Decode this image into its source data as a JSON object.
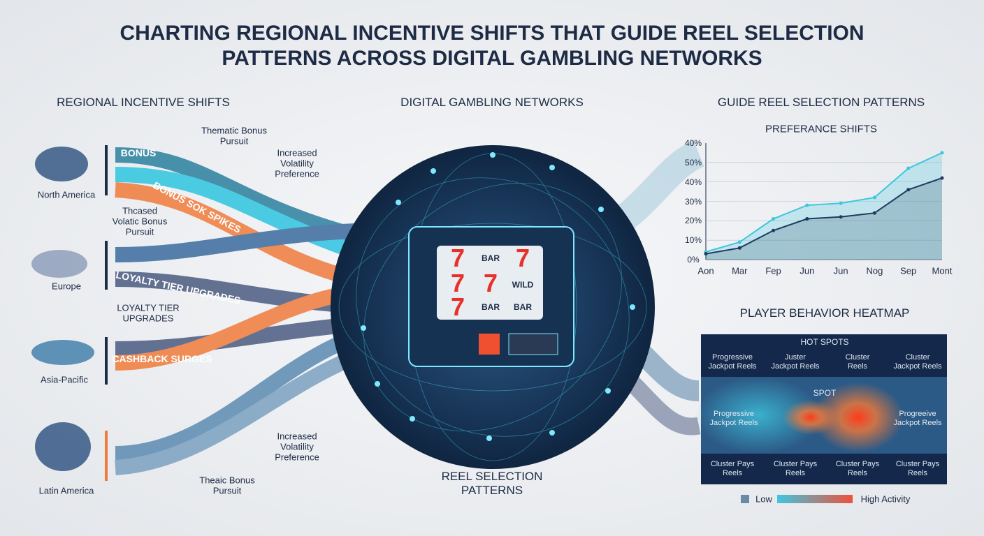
{
  "title": [
    "CHARTING REGIONAL INCENTIVE SHIFTS THAT GUIDE REEL SELECTION",
    "PATTERNS ACROSS DIGITAL GAMBLING NETWORKS"
  ],
  "left": {
    "heading": "REGIONAL INCENTIVE SHIFTS",
    "regions": [
      "North America",
      "Europe",
      "Asia-Pacific",
      "Latin America"
    ],
    "flows": [
      "BONUS",
      "BONUS SOK SPIKES",
      "LOYALTY TIER UPGRADES",
      "CASHBACK SURGES"
    ],
    "annotations": [
      [
        "Thematic Bonus",
        "Pursuit"
      ],
      [
        "Increased",
        "Volatility",
        "Preference"
      ],
      [
        "Thcased",
        "Volatic Bonus",
        "Pursuit"
      ],
      [
        "LOYALTY TIER",
        "UPGRADES"
      ],
      [
        "Increased",
        "Volatility",
        "Preference"
      ],
      [
        "Theaic Bonus",
        "Pursuit"
      ]
    ]
  },
  "center": {
    "heading": "DIGITAL GAMBLING NETWORKS",
    "footer": [
      "REEL SELECTION",
      "PATTERNS"
    ],
    "reels": [
      "7",
      "BAR",
      "7",
      "7",
      "7",
      "WILD",
      "7",
      "BAR",
      "BAR"
    ]
  },
  "right": {
    "heading": "GUIDE REEL SELECTION PATTERNS"
  },
  "chart_data": {
    "type": "line",
    "title": "PREFERANCE SHIFTS",
    "categories": [
      "Aon",
      "Mar",
      "Fep",
      "Jun",
      "Jun",
      "Nog",
      "Sep",
      "Mont"
    ],
    "series": [
      {
        "color": "#3ec6e0",
        "values": [
          4,
          9,
          21,
          28,
          29,
          32,
          47,
          55
        ]
      },
      {
        "color": "#1e3a5f",
        "values": [
          3,
          6,
          15,
          21,
          22,
          24,
          36,
          42
        ]
      }
    ],
    "ylim": [
      0,
      60
    ],
    "yticks": [
      {
        "value": 0,
        "label": "0%"
      },
      {
        "value": 10,
        "label": "10%"
      },
      {
        "value": 20,
        "label": "20%"
      },
      {
        "value": 30,
        "label": "30%"
      },
      {
        "value": 40,
        "label": "40%"
      },
      {
        "value": 50,
        "label": "50%"
      }
    ],
    "y_top_label": "40%"
  },
  "heatmap": {
    "title": "PLAYER BEHAVIOR HEATMAP",
    "hot_spots": "HOT SPOTS",
    "spot": "SPOT",
    "top": [
      [
        "Progressive",
        "Jackpot Reels"
      ],
      [
        "Juster",
        "Jackpot Reels"
      ],
      [
        "Cluster",
        "Reels"
      ],
      [
        "Cluster",
        "Jackpot Reels"
      ]
    ],
    "middle": [
      [
        "Progressive",
        "Jackpot Reels"
      ],
      [
        "Progreeive",
        "Jackpot Reels"
      ]
    ],
    "bottom": [
      [
        "Cluster Pays",
        "Reels"
      ],
      [
        "Cluster Pays",
        "Reels"
      ],
      [
        "Cluster Pays",
        "Reels"
      ],
      [
        "Cluster Pays",
        "Reels"
      ]
    ],
    "legend": [
      "Low",
      "High Activity"
    ]
  }
}
